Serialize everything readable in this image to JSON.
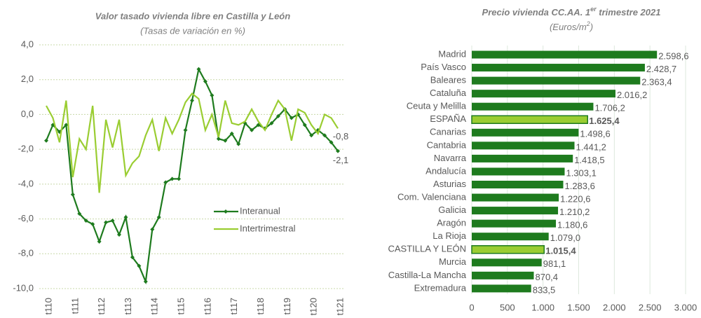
{
  "chart_data": [
    {
      "type": "line",
      "title": "Valor tasado vivienda libre en Castilla y León",
      "subtitle": "(Tasas de variación en %)",
      "categories": [
        "t110",
        null,
        null,
        null,
        "t111",
        null,
        null,
        null,
        "t112",
        null,
        null,
        null,
        "t113",
        null,
        null,
        null,
        "t114",
        null,
        null,
        null,
        "t115",
        null,
        null,
        null,
        "t116",
        null,
        null,
        null,
        "t117",
        null,
        null,
        null,
        "t118",
        null,
        null,
        null,
        "t119",
        null,
        null,
        null,
        "t120",
        null,
        null,
        null,
        "t121"
      ],
      "series": [
        {
          "name": "Interanual",
          "color": "#1e7b1e",
          "markers": true,
          "values": [
            -1.5,
            -0.6,
            -1.0,
            -0.6,
            -4.6,
            -5.7,
            -6.1,
            -6.3,
            -7.3,
            -6.2,
            -6.1,
            -6.9,
            -5.9,
            -8.2,
            -8.7,
            -9.6,
            -6.6,
            -5.9,
            -3.9,
            -3.7,
            -3.7,
            -0.9,
            0.8,
            2.6,
            1.9,
            1.1,
            -1.4,
            -1.5,
            -1.1,
            -1.7,
            -0.5,
            -0.9,
            -0.6,
            -0.8,
            -0.5,
            -0.1,
            0.3,
            -0.2,
            0.0,
            -0.6,
            -1.2,
            -0.9,
            -1.2,
            -1.6,
            -2.1
          ],
          "value_labels": [
            null,
            null,
            null,
            null,
            null,
            null,
            null,
            null,
            null,
            null,
            null,
            null,
            null,
            null,
            null,
            null,
            null,
            null,
            null,
            null,
            null,
            null,
            null,
            null,
            null,
            null,
            null,
            null,
            null,
            null,
            null,
            null,
            null,
            null,
            null,
            null,
            null,
            null,
            null,
            null,
            null,
            null,
            null,
            null,
            "-2,1"
          ]
        },
        {
          "name": "Intertrimestral",
          "color": "#9acd32",
          "markers": false,
          "values": [
            0.5,
            -0.2,
            -1.6,
            0.8,
            -3.6,
            -1.4,
            -2.0,
            0.5,
            -4.5,
            -0.3,
            -1.9,
            -0.3,
            -3.5,
            -2.8,
            -2.4,
            -1.2,
            -0.3,
            -2.1,
            -0.2,
            -1.1,
            -0.3,
            0.7,
            1.2,
            0.9,
            -0.9,
            0.0,
            -1.3,
            0.8,
            -0.5,
            -0.6,
            -0.4,
            0.3,
            -0.4,
            -0.9,
            0.0,
            0.8,
            0.3,
            -1.5,
            0.3,
            0.1,
            -0.6,
            -1.1,
            0.0,
            -0.2,
            -0.8
          ],
          "value_labels": [
            null,
            null,
            null,
            null,
            null,
            null,
            null,
            null,
            null,
            null,
            null,
            null,
            null,
            null,
            null,
            null,
            null,
            null,
            null,
            null,
            null,
            null,
            null,
            null,
            null,
            null,
            null,
            null,
            null,
            null,
            null,
            null,
            null,
            null,
            null,
            null,
            null,
            null,
            null,
            null,
            null,
            null,
            null,
            null,
            "-0,8"
          ]
        }
      ],
      "ylim": [
        -10,
        4
      ],
      "yticks": [
        {
          "value": -10,
          "label": "-10,0"
        },
        {
          "value": -8,
          "label": "-8,0"
        },
        {
          "value": -6,
          "label": "-6,0"
        },
        {
          "value": -4,
          "label": "-4,0"
        },
        {
          "value": -2,
          "label": "-2,0"
        },
        {
          "value": 0,
          "label": "0,0"
        },
        {
          "value": 2,
          "label": "2,0"
        },
        {
          "value": 4,
          "label": "4,0"
        }
      ],
      "grid": true,
      "legend": "lower right"
    },
    {
      "type": "hbar",
      "title_parts": [
        "Precio vivienda CC.AA. 1",
        "er",
        " trimestre 2021"
      ],
      "subtitle_parts": [
        "(Euros/m",
        "2",
        ")"
      ],
      "categories": [
        "Madrid",
        "País Vasco",
        "Baleares",
        "Cataluña",
        "Ceuta y Melilla",
        "ESPAÑA",
        "Canarias",
        "Cantabria",
        "Navarra",
        "Andalucía",
        "Asturias",
        "Com. Valenciana",
        "Galicia",
        "Aragón",
        "La Rioja",
        "CASTILLA Y LEÓN",
        "Murcia",
        "Castilla-La Mancha",
        "Extremadura"
      ],
      "values": [
        2598.6,
        2428.7,
        2363.4,
        2016.2,
        1706.2,
        1625.4,
        1498.6,
        1441.2,
        1418.5,
        1303.1,
        1283.6,
        1220.6,
        1210.2,
        1180.6,
        1079.0,
        1015.4,
        981.1,
        870.4,
        833.5
      ],
      "value_labels": [
        "2.598,6",
        "2.428,7",
        "2.363,4",
        "2.016,2",
        "1.706,2",
        "1.625,4",
        "1.498,6",
        "1.441,2",
        "1.418,5",
        "1.303,1",
        "1.283,6",
        "1.220,6",
        "1.210,2",
        "1.180,6",
        "1.079,0",
        "1.015,4",
        "981,1",
        "870,4",
        "833,5"
      ],
      "colors": [
        "#1e7b1e",
        "#1e7b1e",
        "#1e7b1e",
        "#1e7b1e",
        "#1e7b1e",
        "#9acd32",
        "#1e7b1e",
        "#1e7b1e",
        "#1e7b1e",
        "#1e7b1e",
        "#1e7b1e",
        "#1e7b1e",
        "#1e7b1e",
        "#1e7b1e",
        "#1e7b1e",
        "#9acd32",
        "#1e7b1e",
        "#1e7b1e",
        "#1e7b1e"
      ],
      "xlim": [
        0,
        3000
      ],
      "xticks": [
        0,
        500,
        {
          "value": 1000,
          "label": "1.000"
        },
        {
          "value": 1500,
          "label": "1.500"
        },
        {
          "value": 2000,
          "label": "2.000"
        },
        {
          "value": 2500,
          "label": "2.500"
        },
        {
          "value": 3000,
          "label": "3.000"
        }
      ],
      "grid": true
    }
  ]
}
